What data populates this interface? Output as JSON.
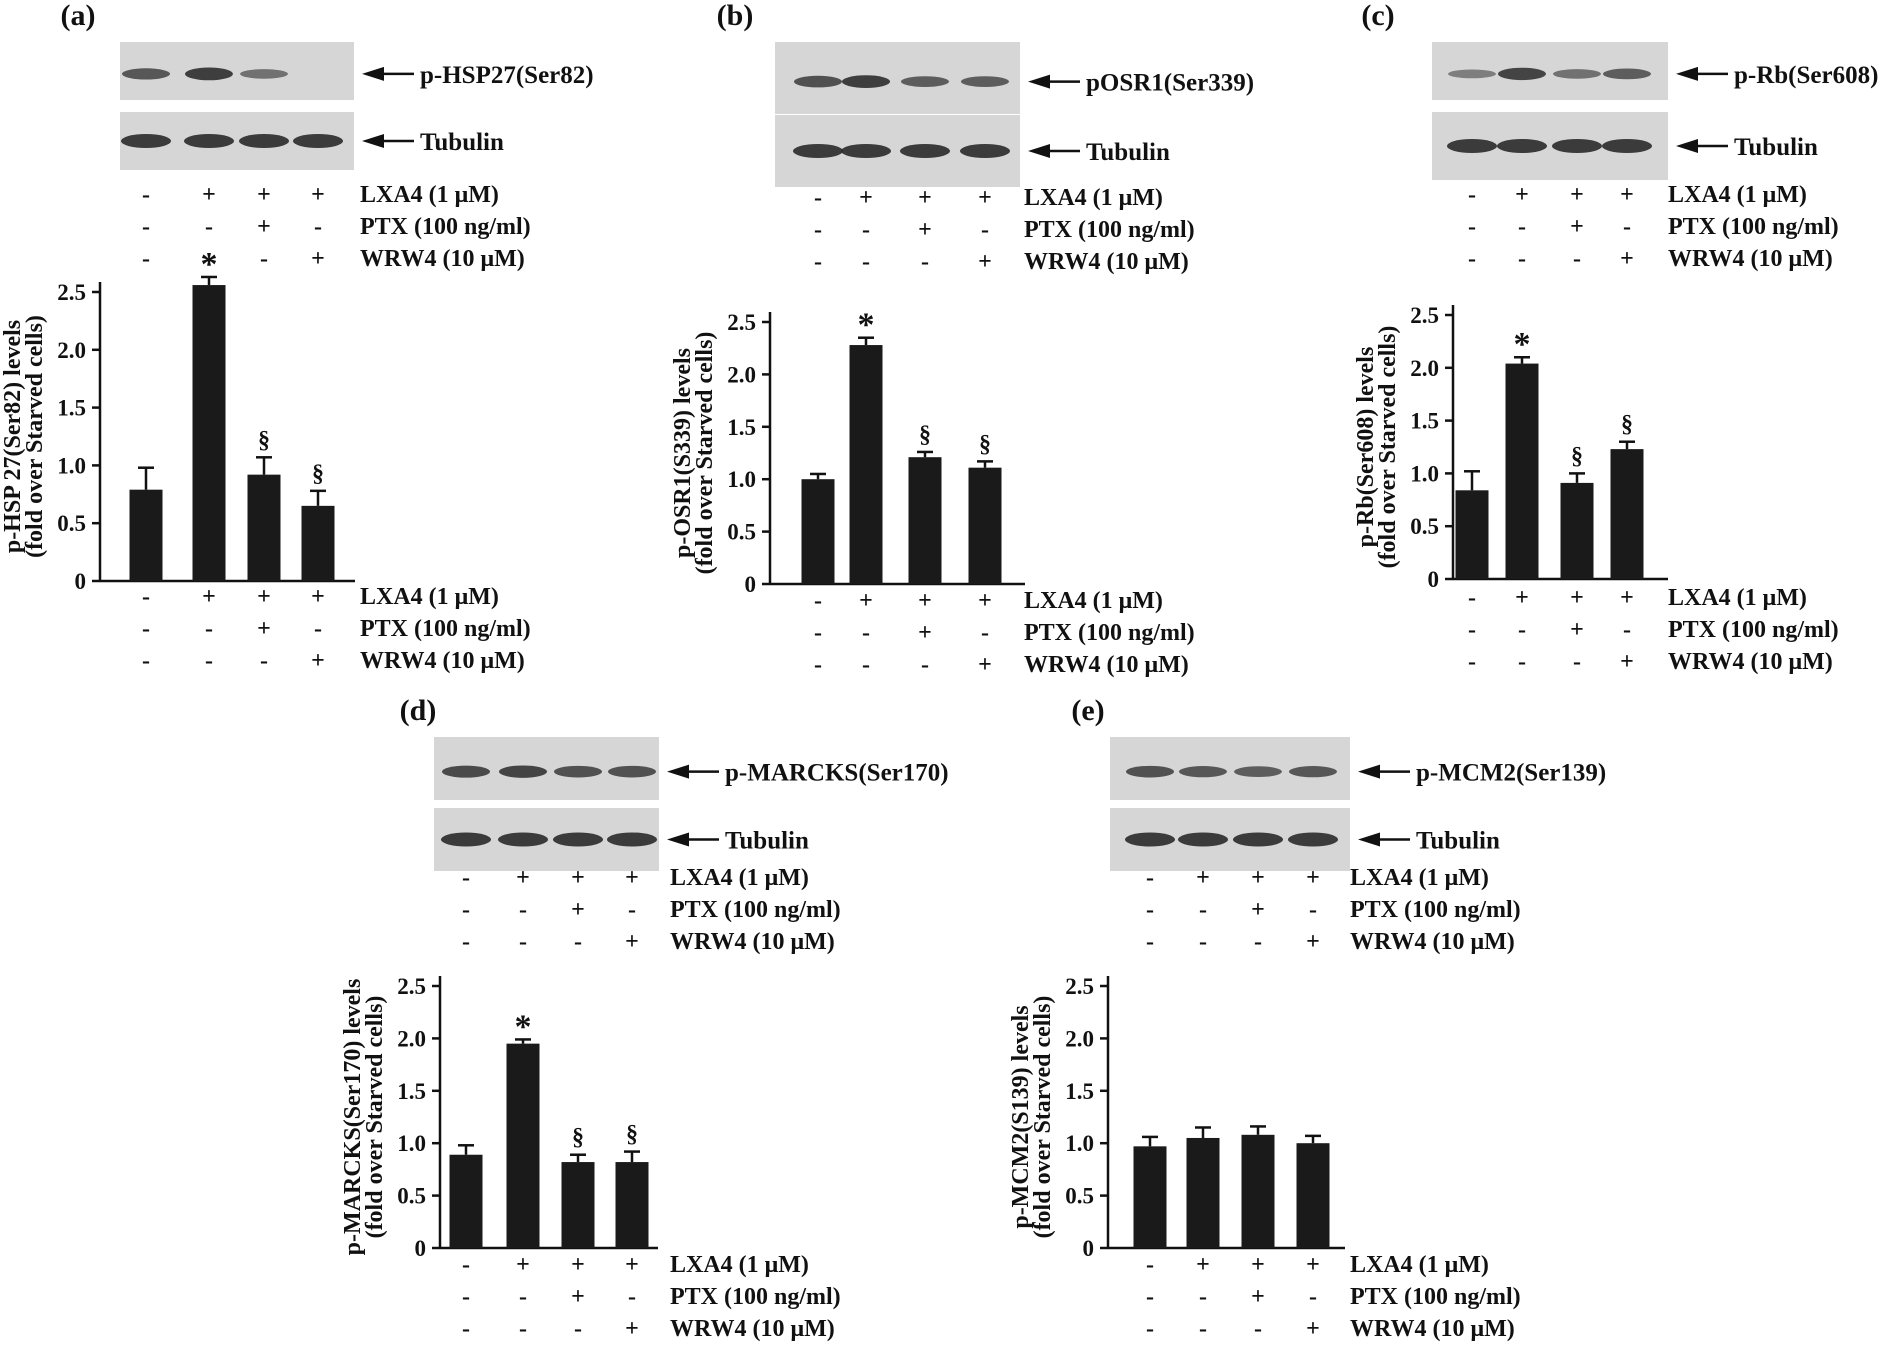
{
  "figure": {
    "treatments": [
      {
        "label": "LXA4 (1 μM)",
        "signs": [
          "-",
          "+",
          "+",
          "+"
        ]
      },
      {
        "label": "PTX (100 ng/ml)",
        "signs": [
          "-",
          "-",
          "+",
          "-"
        ]
      },
      {
        "label": "WRW4 (10 μM)",
        "signs": [
          "-",
          "-",
          "-",
          "+"
        ]
      }
    ],
    "tubulin_label": "Tubulin",
    "colors": {
      "bar": "#1a1a1a",
      "blot_bg": "#d6d6d6",
      "band": "#2a2a2a"
    }
  },
  "chart_data": [
    {
      "panel": "(a)",
      "type": "bar",
      "blot_label": "p-HSP27(Ser82)",
      "band_intensity": [
        0.65,
        0.85,
        0.45,
        0.0
      ],
      "ylabel_line1": "p-HSP 27(Ser82) levels",
      "ylabel_line2": "(fold over Starved cells)",
      "ylim": [
        0,
        2.5
      ],
      "yticks": [
        "0",
        "0.5",
        "1.0",
        "1.5",
        "2.0",
        "2.5"
      ],
      "values": [
        0.79,
        2.56,
        0.92,
        0.65
      ],
      "errors": [
        0.19,
        0.07,
        0.15,
        0.13
      ],
      "annotations": [
        "",
        "*",
        "§",
        "§"
      ]
    },
    {
      "panel": "(b)",
      "type": "bar",
      "blot_label": "pOSR1(Ser339)",
      "band_intensity": [
        0.7,
        0.85,
        0.6,
        0.6
      ],
      "ylabel_line1": "p-OSR1(S339) levels",
      "ylabel_line2": "(fold over Starved cells)",
      "ylim": [
        0,
        2.5
      ],
      "yticks": [
        "0",
        "0.5",
        "1.0",
        "1.5",
        "2.0",
        "2.5"
      ],
      "values": [
        1.0,
        2.28,
        1.21,
        1.11
      ],
      "errors": [
        0.05,
        0.07,
        0.05,
        0.06
      ],
      "annotations": [
        "",
        "*",
        "§",
        "§"
      ]
    },
    {
      "panel": "(c)",
      "type": "bar",
      "blot_label": "p-Rb(Ser608)",
      "band_intensity": [
        0.35,
        0.8,
        0.45,
        0.6
      ],
      "ylabel_line1": "p-Rb(Ser608) levels",
      "ylabel_line2": "(fold over Starved cells)",
      "ylim": [
        0,
        2.5
      ],
      "yticks": [
        "0",
        "0.5",
        "1.0",
        "1.5",
        "2.0",
        "2.5"
      ],
      "values": [
        0.84,
        2.04,
        0.91,
        1.23
      ],
      "errors": [
        0.18,
        0.06,
        0.09,
        0.07
      ],
      "annotations": [
        "",
        "*",
        "§",
        "§"
      ]
    },
    {
      "panel": "(d)",
      "type": "bar",
      "blot_label": "p-MARCKS(Ser170)",
      "band_intensity": [
        0.75,
        0.8,
        0.7,
        0.7
      ],
      "ylabel_line1": "p-MARCKS(Ser170) levels",
      "ylabel_line2": "(fold over Starved cells)",
      "ylim": [
        0,
        2.5
      ],
      "yticks": [
        "0",
        "0.5",
        "1.0",
        "1.5",
        "2.0",
        "2.5"
      ],
      "values": [
        0.89,
        1.95,
        0.82,
        0.82
      ],
      "errors": [
        0.09,
        0.04,
        0.07,
        0.1
      ],
      "annotations": [
        "",
        "*",
        "§",
        "§"
      ]
    },
    {
      "panel": "(e)",
      "type": "bar",
      "blot_label": "p-MCM2(Ser139)",
      "band_intensity": [
        0.7,
        0.65,
        0.6,
        0.65
      ],
      "ylabel_line1": "p-MCM2(S139) levels",
      "ylabel_line2": "(fold over Starved cells)",
      "ylim": [
        0,
        2.5
      ],
      "yticks": [
        "0",
        "0.5",
        "1.0",
        "1.5",
        "2.0",
        "2.5"
      ],
      "values": [
        0.97,
        1.05,
        1.08,
        1.0
      ],
      "errors": [
        0.09,
        0.1,
        0.08,
        0.07
      ],
      "annotations": [
        "",
        "",
        "",
        ""
      ]
    }
  ]
}
